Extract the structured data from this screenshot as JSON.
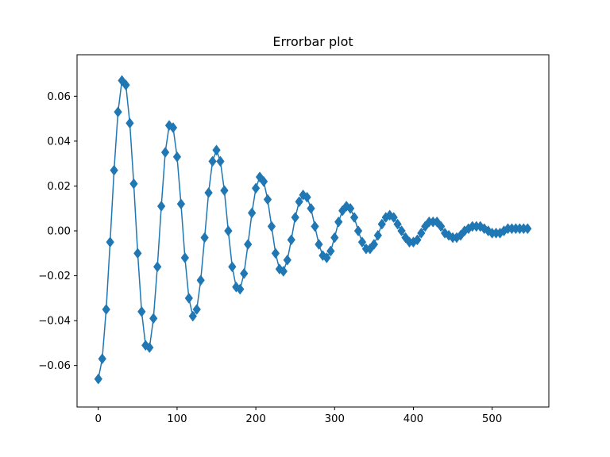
{
  "chart_data": {
    "type": "scatter",
    "title": "Errorbar plot",
    "xlabel": "",
    "ylabel": "",
    "xlim": [
      -27,
      572
    ],
    "ylim": [
      -0.0785,
      0.0785
    ],
    "x_ticks": [
      0,
      100,
      200,
      300,
      400,
      500
    ],
    "y_ticks": [
      -0.06,
      -0.04,
      -0.02,
      0.0,
      0.02,
      0.04,
      0.06
    ],
    "x_tick_labels": [
      "0",
      "100",
      "200",
      "300",
      "400",
      "500"
    ],
    "y_tick_labels": [
      "−0.06",
      "−0.04",
      "−0.02",
      "0.00",
      "0.02",
      "0.04",
      "0.06"
    ],
    "marker": "diamond",
    "color": "#1f77b4",
    "grid": false,
    "model": "damped oscillation: y = -0.069*exp(-x/210)*cos(2*pi*x/61) (approx.)",
    "series": [
      {
        "x": [
          0,
          5,
          10,
          15,
          20,
          25,
          30,
          35,
          40,
          45,
          50,
          55,
          60,
          65,
          70,
          75,
          80,
          85,
          90,
          95,
          100,
          105,
          110,
          115,
          120,
          125,
          130,
          135,
          140,
          145,
          150,
          155,
          160,
          165,
          170,
          175,
          180,
          185,
          190,
          195,
          200,
          205,
          210,
          215,
          220,
          225,
          230,
          235,
          240,
          245,
          250,
          255,
          260,
          265,
          270,
          275,
          280,
          285,
          290,
          295,
          300,
          305,
          310,
          315,
          320,
          325,
          330,
          335,
          340,
          345,
          350,
          355,
          360,
          365,
          370,
          375,
          380,
          385,
          390,
          395,
          400,
          405,
          410,
          415,
          420,
          425,
          430,
          435,
          440,
          445,
          450,
          455,
          460,
          465,
          470,
          475,
          480,
          485,
          490,
          495,
          500,
          505,
          510,
          515,
          520,
          525,
          530,
          535,
          540,
          545
        ],
        "y": [
          -0.066,
          -0.057,
          -0.035,
          -0.005,
          0.027,
          0.053,
          0.067,
          0.065,
          0.048,
          0.021,
          -0.01,
          -0.036,
          -0.051,
          -0.052,
          -0.039,
          -0.016,
          0.011,
          0.035,
          0.047,
          0.046,
          0.033,
          0.012,
          -0.012,
          -0.03,
          -0.038,
          -0.035,
          -0.022,
          -0.003,
          0.017,
          0.031,
          0.036,
          0.031,
          0.018,
          0.0,
          -0.016,
          -0.025,
          -0.026,
          -0.019,
          -0.006,
          0.008,
          0.019,
          0.024,
          0.022,
          0.014,
          0.002,
          -0.01,
          -0.017,
          -0.018,
          -0.013,
          -0.004,
          0.006,
          0.013,
          0.016,
          0.015,
          0.01,
          0.002,
          -0.006,
          -0.011,
          -0.012,
          -0.009,
          -0.003,
          0.004,
          0.009,
          0.011,
          0.01,
          0.006,
          0.0,
          -0.005,
          -0.008,
          -0.008,
          -0.006,
          -0.002,
          0.003,
          0.006,
          0.007,
          0.006,
          0.003,
          0.0,
          -0.003,
          -0.005,
          -0.005,
          -0.004,
          -0.001,
          0.002,
          0.004,
          0.004,
          0.004,
          0.002,
          -0.001,
          -0.002,
          -0.003,
          -0.003,
          -0.002,
          0.0,
          0.001,
          0.002,
          0.002,
          0.002,
          0.001,
          0.0,
          -0.001,
          -0.001,
          -0.001,
          0.0,
          0.001,
          0.001,
          0.001,
          0.001,
          0.001,
          0.001
        ]
      }
    ]
  }
}
